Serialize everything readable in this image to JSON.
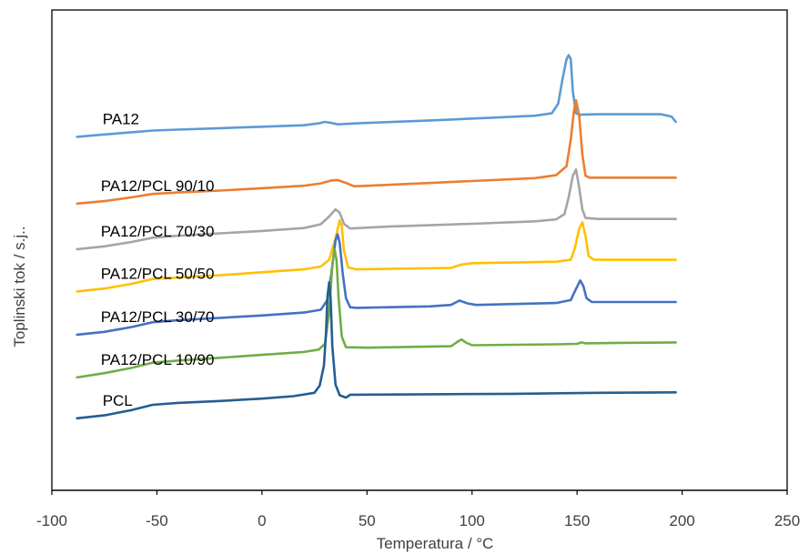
{
  "chart_data": {
    "type": "line",
    "title": "",
    "xlabel": "Temperatura / °C",
    "ylabel": "Toplinski tok / s.j..",
    "xlim": [
      -100,
      250
    ],
    "xticks": [
      -100,
      -50,
      0,
      50,
      100,
      150,
      200,
      250
    ],
    "ylim": [
      0,
      100
    ],
    "y_ticks_shown": false,
    "grid": false,
    "legend": "none",
    "series": [
      {
        "name": "PA12",
        "color": "#5B9BD5",
        "points": [
          [
            -88,
            73.6
          ],
          [
            -75,
            74.1
          ],
          [
            -60,
            74.6
          ],
          [
            -52,
            74.9
          ],
          [
            -40,
            75.1
          ],
          [
            -20,
            75.4
          ],
          [
            0,
            75.7
          ],
          [
            20,
            76.0
          ],
          [
            27,
            76.4
          ],
          [
            30,
            76.7
          ],
          [
            33,
            76.5
          ],
          [
            36,
            76.2
          ],
          [
            45,
            76.4
          ],
          [
            80,
            77.0
          ],
          [
            110,
            77.6
          ],
          [
            130,
            78.0
          ],
          [
            138,
            78.5
          ],
          [
            141,
            80.5
          ],
          [
            143,
            85.5
          ],
          [
            145,
            89.8
          ],
          [
            146,
            90.6
          ],
          [
            147,
            89.8
          ],
          [
            148,
            83.0
          ],
          [
            149.5,
            78.5
          ],
          [
            151,
            78.2
          ],
          [
            160,
            78.3
          ],
          [
            190,
            78.3
          ],
          [
            195,
            77.8
          ],
          [
            197,
            76.7
          ]
        ]
      },
      {
        "name": "PA12/PCL 90/10",
        "color": "#ED7D31",
        "points": [
          [
            -88,
            59.7
          ],
          [
            -75,
            60.2
          ],
          [
            -62,
            61.0
          ],
          [
            -52,
            61.7
          ],
          [
            -40,
            62.0
          ],
          [
            -20,
            62.4
          ],
          [
            0,
            62.9
          ],
          [
            20,
            63.4
          ],
          [
            28,
            63.9
          ],
          [
            33,
            64.5
          ],
          [
            36,
            64.6
          ],
          [
            40,
            64.0
          ],
          [
            44,
            63.3
          ],
          [
            60,
            63.6
          ],
          [
            100,
            64.4
          ],
          [
            130,
            65.0
          ],
          [
            140,
            65.6
          ],
          [
            145,
            67.5
          ],
          [
            147,
            73.0
          ],
          [
            148.5,
            79.0
          ],
          [
            149.5,
            81.2
          ],
          [
            151,
            78.0
          ],
          [
            152.5,
            70.0
          ],
          [
            154,
            65.5
          ],
          [
            156,
            65.1
          ],
          [
            170,
            65.1
          ],
          [
            197,
            65.1
          ]
        ]
      },
      {
        "name": "PA12/PCL 70/30",
        "color": "#A5A5A5",
        "points": [
          [
            -88,
            50.2
          ],
          [
            -75,
            50.8
          ],
          [
            -62,
            51.7
          ],
          [
            -52,
            52.6
          ],
          [
            -40,
            53.0
          ],
          [
            -20,
            53.5
          ],
          [
            0,
            54.0
          ],
          [
            20,
            54.6
          ],
          [
            28,
            55.4
          ],
          [
            32,
            57.0
          ],
          [
            35,
            58.5
          ],
          [
            37,
            57.8
          ],
          [
            39,
            55.5
          ],
          [
            42,
            54.5
          ],
          [
            60,
            54.9
          ],
          [
            100,
            55.5
          ],
          [
            130,
            56.0
          ],
          [
            140,
            56.4
          ],
          [
            144,
            57.5
          ],
          [
            146,
            61.0
          ],
          [
            148,
            65.5
          ],
          [
            149.5,
            66.8
          ],
          [
            151,
            63.0
          ],
          [
            152.5,
            58.5
          ],
          [
            154,
            56.7
          ],
          [
            160,
            56.5
          ],
          [
            197,
            56.5
          ]
        ]
      },
      {
        "name": "PA12/PCL 50/50",
        "color": "#FFC000",
        "points": [
          [
            -88,
            41.4
          ],
          [
            -75,
            42.0
          ],
          [
            -62,
            43.0
          ],
          [
            -52,
            44.0
          ],
          [
            -40,
            44.3
          ],
          [
            -20,
            44.8
          ],
          [
            0,
            45.4
          ],
          [
            20,
            46.0
          ],
          [
            28,
            46.6
          ],
          [
            32,
            48.0
          ],
          [
            35,
            52.5
          ],
          [
            37,
            56.2
          ],
          [
            38,
            55.0
          ],
          [
            39,
            50.0
          ],
          [
            41,
            46.4
          ],
          [
            45,
            46.0
          ],
          [
            90,
            46.3
          ],
          [
            95,
            47.0
          ],
          [
            100,
            47.3
          ],
          [
            140,
            47.6
          ],
          [
            147,
            48.0
          ],
          [
            149,
            50.5
          ],
          [
            151,
            54.5
          ],
          [
            152.5,
            55.8
          ],
          [
            154,
            53.0
          ],
          [
            155.5,
            48.8
          ],
          [
            158,
            48.0
          ],
          [
            197,
            48.0
          ]
        ]
      },
      {
        "name": "PA12/PCL 30/70",
        "color": "#4472C4",
        "points": [
          [
            -88,
            32.4
          ],
          [
            -75,
            33.0
          ],
          [
            -62,
            34.0
          ],
          [
            -52,
            35.0
          ],
          [
            -40,
            35.4
          ],
          [
            -20,
            35.9
          ],
          [
            0,
            36.4
          ],
          [
            20,
            37.0
          ],
          [
            28,
            37.6
          ],
          [
            31,
            39.5
          ],
          [
            33,
            45.0
          ],
          [
            35,
            52.0
          ],
          [
            36,
            53.3
          ],
          [
            37,
            51.5
          ],
          [
            38.5,
            45.0
          ],
          [
            40,
            40.0
          ],
          [
            42,
            38.1
          ],
          [
            45,
            38.0
          ],
          [
            80,
            38.3
          ],
          [
            90,
            38.6
          ],
          [
            94,
            39.5
          ],
          [
            98,
            38.9
          ],
          [
            102,
            38.6
          ],
          [
            140,
            39.0
          ],
          [
            147,
            39.6
          ],
          [
            149,
            41.5
          ],
          [
            151.5,
            43.7
          ],
          [
            153,
            42.5
          ],
          [
            154.5,
            40.0
          ],
          [
            157,
            39.2
          ],
          [
            197,
            39.2
          ]
        ]
      },
      {
        "name": "PA12/PCL 10/90",
        "color": "#70AD47",
        "points": [
          [
            -88,
            23.5
          ],
          [
            -75,
            24.4
          ],
          [
            -62,
            25.5
          ],
          [
            -52,
            26.6
          ],
          [
            -40,
            27.0
          ],
          [
            -20,
            27.6
          ],
          [
            0,
            28.2
          ],
          [
            20,
            28.8
          ],
          [
            27,
            29.3
          ],
          [
            30,
            30.5
          ],
          [
            32,
            37.0
          ],
          [
            33.5,
            47.0
          ],
          [
            34.5,
            50.2
          ],
          [
            35.5,
            48.0
          ],
          [
            36.5,
            40.0
          ],
          [
            38,
            32.0
          ],
          [
            40,
            29.8
          ],
          [
            50,
            29.7
          ],
          [
            90,
            30.0
          ],
          [
            93,
            30.9
          ],
          [
            95,
            31.4
          ],
          [
            97,
            30.8
          ],
          [
            100,
            30.2
          ],
          [
            140,
            30.4
          ],
          [
            150,
            30.5
          ],
          [
            152,
            30.8
          ],
          [
            154,
            30.6
          ],
          [
            170,
            30.7
          ],
          [
            197,
            30.8
          ]
        ]
      },
      {
        "name": "PCL",
        "color": "#255E91",
        "points": [
          [
            -88,
            15.0
          ],
          [
            -75,
            15.6
          ],
          [
            -62,
            16.7
          ],
          [
            -52,
            17.8
          ],
          [
            -40,
            18.2
          ],
          [
            -20,
            18.6
          ],
          [
            0,
            19.1
          ],
          [
            15,
            19.6
          ],
          [
            25,
            20.3
          ],
          [
            27.5,
            21.8
          ],
          [
            29.5,
            26.0
          ],
          [
            30.5,
            33.0
          ],
          [
            31.2,
            40.5
          ],
          [
            32,
            43.3
          ],
          [
            32.7,
            40.0
          ],
          [
            33.5,
            30.0
          ],
          [
            35,
            22.0
          ],
          [
            37,
            19.8
          ],
          [
            40,
            19.3
          ],
          [
            42,
            19.9
          ],
          [
            80,
            20.0
          ],
          [
            120,
            20.1
          ],
          [
            160,
            20.3
          ],
          [
            197,
            20.4
          ]
        ]
      }
    ]
  }
}
